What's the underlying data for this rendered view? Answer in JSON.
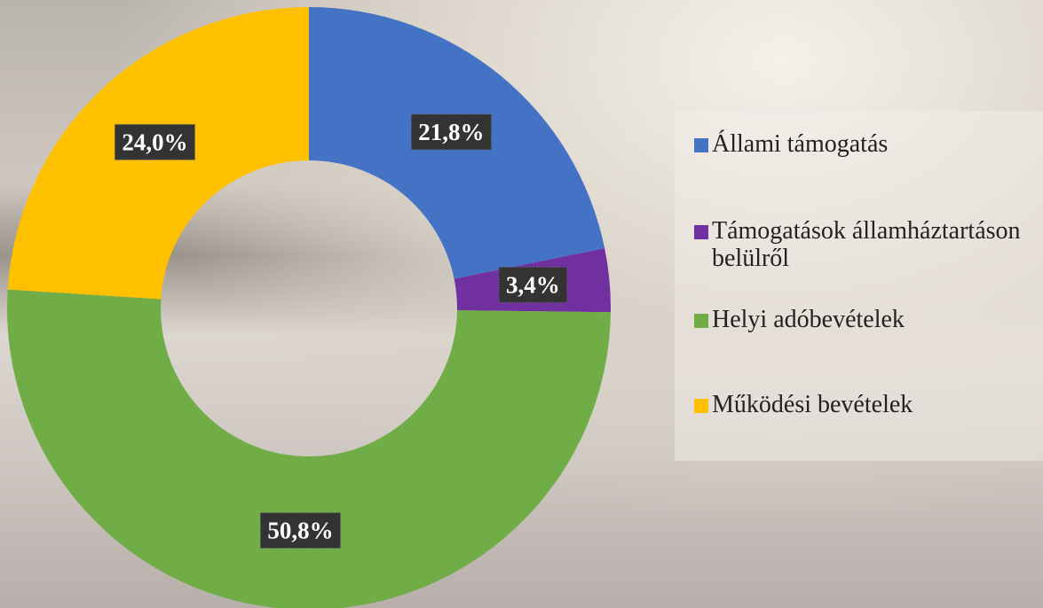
{
  "chart_data": {
    "type": "donut",
    "categories": [
      "Állami támogatás",
      "Támogatások államháztartáson belülről",
      "Helyi adóbevételek",
      "Működési bevételek"
    ],
    "values": [
      21.8,
      3.4,
      50.8,
      24.0
    ],
    "value_labels": [
      "21,8%",
      "3,4%",
      "50,8%",
      "24,0%"
    ],
    "colors": [
      "#4472c4",
      "#7030a0",
      "#70ad47",
      "#ffc000"
    ],
    "legend": "right"
  }
}
